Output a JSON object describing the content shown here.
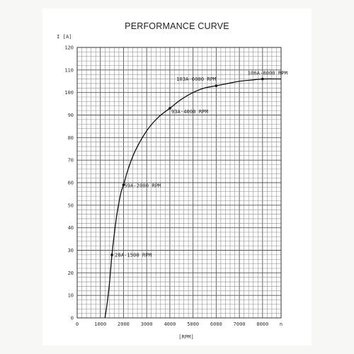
{
  "chart_data": {
    "type": "line",
    "title": "PERFORMANCE CURVE",
    "ylabel": "I [A]",
    "xlabel": "[RPM]",
    "x_end_label": "n",
    "xlim": [
      0,
      8800
    ],
    "ylim": [
      0,
      120
    ],
    "x_ticks": [
      0,
      1000,
      2000,
      3000,
      4000,
      5000,
      6000,
      7000,
      8000
    ],
    "y_ticks": [
      0,
      10,
      20,
      30,
      40,
      50,
      60,
      70,
      80,
      90,
      100,
      110,
      120
    ],
    "grid": true,
    "series": [
      {
        "x": [
          1200,
          1300,
          1400,
          1500,
          1600,
          1700,
          1800,
          1900,
          2000,
          2200,
          2500,
          3000,
          3500,
          4000,
          4500,
          5000,
          5500,
          6000,
          6500,
          7000,
          7500,
          8000,
          8800
        ],
        "y": [
          0,
          7,
          16,
          28,
          37,
          45,
          51,
          56,
          59,
          66,
          74,
          83,
          89,
          93,
          97,
          100,
          102,
          103,
          104,
          105,
          105.5,
          106,
          106
        ]
      }
    ],
    "annotations": [
      {
        "x": 1500,
        "y": 28,
        "label": "28A-1500 RPM"
      },
      {
        "x": 2000,
        "y": 59,
        "label": "59A-2000 RPM"
      },
      {
        "x": 4000,
        "y": 93,
        "label": "93A-4000 RPM"
      },
      {
        "x": 6000,
        "y": 103,
        "label": "103A-6000 RPM"
      },
      {
        "x": 8000,
        "y": 106,
        "label": "106A-8000 RPM"
      }
    ]
  }
}
